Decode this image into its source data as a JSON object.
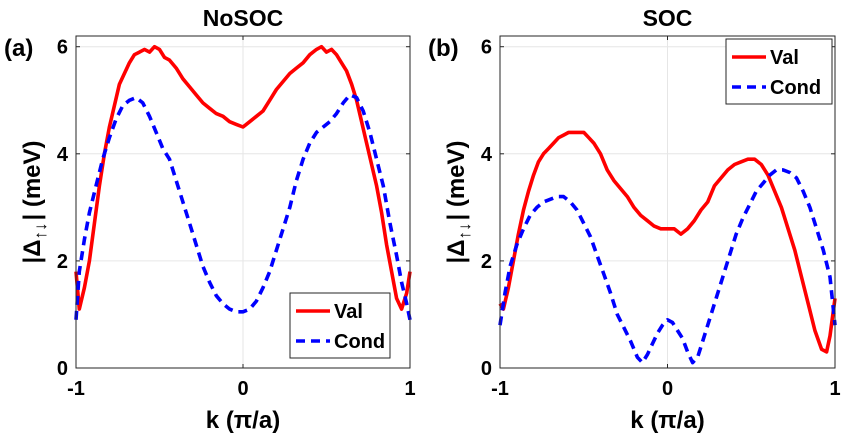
{
  "chart_data": [
    {
      "type": "line",
      "panel_label": "(a)",
      "title": "NoSOC",
      "xlabel": "k (π/a)",
      "ylabel_main": "|Δ",
      "ylabel_sub": "↑↓",
      "ylabel_end": "| (meV)",
      "xlim": [
        -1,
        1
      ],
      "ylim": [
        0,
        6.2
      ],
      "xticks": [
        -1,
        0,
        1
      ],
      "yticks": [
        0,
        2,
        4,
        6
      ],
      "xtick_labels": [
        "-1",
        "0",
        "1"
      ],
      "ytick_labels": [
        "0",
        "2",
        "4",
        "6"
      ],
      "grid": true,
      "legend_position": "bottom-right",
      "series": [
        {
          "name": "Val",
          "color": "#ff0000",
          "dash": "solid",
          "x": [
            -1.0,
            -0.98,
            -0.95,
            -0.92,
            -0.89,
            -0.86,
            -0.83,
            -0.8,
            -0.77,
            -0.74,
            -0.71,
            -0.68,
            -0.65,
            -0.62,
            -0.59,
            -0.56,
            -0.53,
            -0.5,
            -0.47,
            -0.44,
            -0.4,
            -0.36,
            -0.32,
            -0.28,
            -0.24,
            -0.2,
            -0.16,
            -0.12,
            -0.08,
            -0.04,
            0.0,
            0.04,
            0.08,
            0.12,
            0.16,
            0.2,
            0.24,
            0.28,
            0.32,
            0.36,
            0.4,
            0.44,
            0.47,
            0.5,
            0.53,
            0.56,
            0.59,
            0.62,
            0.65,
            0.68,
            0.71,
            0.74,
            0.77,
            0.8,
            0.83,
            0.86,
            0.89,
            0.92,
            0.95,
            0.98,
            1.0
          ],
          "y": [
            1.8,
            1.1,
            1.5,
            2.0,
            2.7,
            3.4,
            4.0,
            4.5,
            4.9,
            5.3,
            5.5,
            5.7,
            5.85,
            5.9,
            5.95,
            5.9,
            6.0,
            5.95,
            5.8,
            5.75,
            5.6,
            5.4,
            5.25,
            5.1,
            4.95,
            4.85,
            4.75,
            4.7,
            4.6,
            4.55,
            4.5,
            4.6,
            4.7,
            4.8,
            5.0,
            5.2,
            5.35,
            5.5,
            5.6,
            5.7,
            5.85,
            5.95,
            6.0,
            5.9,
            5.95,
            5.85,
            5.7,
            5.55,
            5.3,
            5.0,
            4.6,
            4.2,
            3.8,
            3.4,
            2.9,
            2.3,
            1.8,
            1.3,
            1.1,
            1.4,
            1.8
          ]
        },
        {
          "name": "Cond",
          "color": "#0000ff",
          "dash": "dashed",
          "x": [
            -1.0,
            -0.98,
            -0.95,
            -0.92,
            -0.88,
            -0.84,
            -0.8,
            -0.76,
            -0.72,
            -0.68,
            -0.64,
            -0.6,
            -0.56,
            -0.52,
            -0.48,
            -0.44,
            -0.4,
            -0.36,
            -0.32,
            -0.28,
            -0.24,
            -0.2,
            -0.16,
            -0.12,
            -0.08,
            -0.04,
            0.0,
            0.04,
            0.08,
            0.12,
            0.16,
            0.2,
            0.24,
            0.28,
            0.32,
            0.36,
            0.4,
            0.44,
            0.48,
            0.52,
            0.56,
            0.6,
            0.64,
            0.68,
            0.72,
            0.76,
            0.8,
            0.84,
            0.88,
            0.92,
            0.95,
            0.98,
            1.0
          ],
          "y": [
            0.9,
            1.8,
            2.4,
            2.9,
            3.4,
            3.9,
            4.3,
            4.65,
            4.9,
            5.0,
            5.05,
            4.95,
            4.7,
            4.4,
            4.1,
            3.9,
            3.5,
            3.1,
            2.7,
            2.3,
            1.9,
            1.6,
            1.35,
            1.2,
            1.1,
            1.05,
            1.05,
            1.1,
            1.25,
            1.5,
            1.8,
            2.2,
            2.6,
            3.0,
            3.5,
            3.9,
            4.2,
            4.4,
            4.5,
            4.6,
            4.75,
            4.95,
            5.1,
            5.05,
            4.8,
            4.4,
            3.9,
            3.4,
            2.7,
            2.1,
            1.6,
            1.2,
            0.9
          ]
        }
      ]
    },
    {
      "type": "line",
      "panel_label": "(b)",
      "title": "SOC",
      "xlabel": "k (π/a)",
      "ylabel_main": "|Δ",
      "ylabel_sub": "↑↓",
      "ylabel_end": "| (meV)",
      "xlim": [
        -1,
        1
      ],
      "ylim": [
        0,
        6.2
      ],
      "xticks": [
        -1,
        0,
        1
      ],
      "yticks": [
        0,
        2,
        4,
        6
      ],
      "xtick_labels": [
        "-1",
        "0",
        "1"
      ],
      "ytick_labels": [
        "0",
        "2",
        "4",
        "6"
      ],
      "grid": true,
      "legend_position": "top-right",
      "series": [
        {
          "name": "Val",
          "color": "#ff0000",
          "dash": "solid",
          "x": [
            -1.0,
            -0.98,
            -0.95,
            -0.92,
            -0.89,
            -0.86,
            -0.83,
            -0.8,
            -0.77,
            -0.74,
            -0.71,
            -0.68,
            -0.65,
            -0.62,
            -0.59,
            -0.56,
            -0.53,
            -0.5,
            -0.47,
            -0.44,
            -0.4,
            -0.36,
            -0.32,
            -0.28,
            -0.24,
            -0.2,
            -0.16,
            -0.12,
            -0.08,
            -0.04,
            0.0,
            0.04,
            0.08,
            0.12,
            0.16,
            0.2,
            0.24,
            0.28,
            0.32,
            0.36,
            0.4,
            0.44,
            0.48,
            0.52,
            0.56,
            0.6,
            0.64,
            0.68,
            0.72,
            0.76,
            0.8,
            0.84,
            0.88,
            0.92,
            0.95,
            0.97,
            1.0
          ],
          "y": [
            1.2,
            1.1,
            1.5,
            2.0,
            2.5,
            2.95,
            3.3,
            3.6,
            3.85,
            4.0,
            4.1,
            4.2,
            4.3,
            4.35,
            4.4,
            4.4,
            4.4,
            4.4,
            4.3,
            4.2,
            4.0,
            3.7,
            3.5,
            3.35,
            3.2,
            3.0,
            2.85,
            2.75,
            2.65,
            2.6,
            2.6,
            2.6,
            2.5,
            2.6,
            2.75,
            2.95,
            3.1,
            3.4,
            3.55,
            3.7,
            3.8,
            3.85,
            3.9,
            3.9,
            3.8,
            3.6,
            3.3,
            3.0,
            2.6,
            2.2,
            1.7,
            1.2,
            0.7,
            0.35,
            0.3,
            0.6,
            1.3
          ]
        },
        {
          "name": "Cond",
          "color": "#0000ff",
          "dash": "dashed",
          "x": [
            -1.0,
            -0.97,
            -0.94,
            -0.9,
            -0.86,
            -0.82,
            -0.78,
            -0.74,
            -0.7,
            -0.66,
            -0.62,
            -0.58,
            -0.54,
            -0.5,
            -0.46,
            -0.42,
            -0.38,
            -0.34,
            -0.3,
            -0.26,
            -0.22,
            -0.18,
            -0.15,
            -0.12,
            -0.09,
            -0.06,
            -0.03,
            0.0,
            0.03,
            0.06,
            0.09,
            0.12,
            0.15,
            0.18,
            0.21,
            0.25,
            0.29,
            0.33,
            0.37,
            0.41,
            0.45,
            0.49,
            0.53,
            0.57,
            0.61,
            0.65,
            0.69,
            0.73,
            0.77,
            0.81,
            0.85,
            0.89,
            0.93,
            0.97,
            1.0
          ],
          "y": [
            0.8,
            1.4,
            1.9,
            2.3,
            2.6,
            2.85,
            3.0,
            3.1,
            3.15,
            3.2,
            3.2,
            3.1,
            2.95,
            2.7,
            2.45,
            2.1,
            1.75,
            1.4,
            1.0,
            0.75,
            0.5,
            0.2,
            0.1,
            0.25,
            0.45,
            0.65,
            0.8,
            0.9,
            0.85,
            0.7,
            0.55,
            0.3,
            0.1,
            0.2,
            0.5,
            0.9,
            1.3,
            1.7,
            2.1,
            2.5,
            2.8,
            3.05,
            3.3,
            3.45,
            3.6,
            3.7,
            3.7,
            3.65,
            3.55,
            3.3,
            3.0,
            2.6,
            2.2,
            1.7,
            0.8
          ]
        }
      ]
    }
  ]
}
